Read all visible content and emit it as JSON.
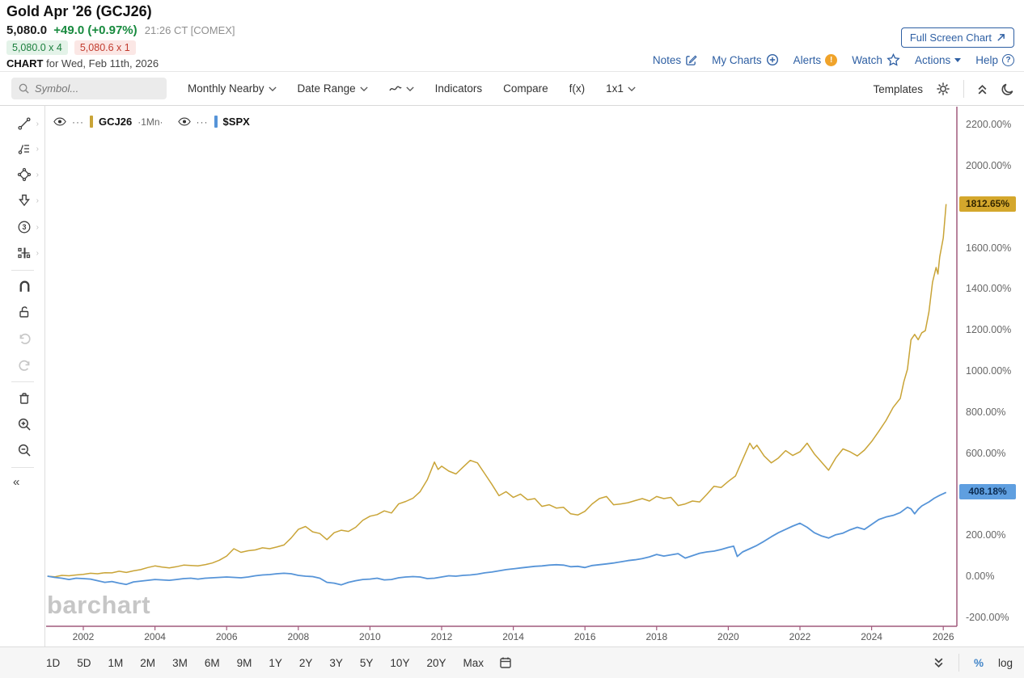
{
  "header": {
    "title": "Gold Apr '26 (GCJ26)",
    "last": "5,080.0",
    "change": "+49.0 (+0.97%)",
    "time": "21:26 CT [COMEX]",
    "bid": "5,080.0 x 4",
    "ask": "5,080.6 x 1",
    "chart_label": "CHART",
    "chart_for": "for Wed, Feb 11th, 2026",
    "fullscreen": "Full Screen Chart",
    "links": [
      {
        "label": "Notes",
        "icon": "notes-edit-icon"
      },
      {
        "label": "My Charts",
        "icon": "plus-circle-icon"
      },
      {
        "label": "Alerts",
        "icon": "alert-badge-icon",
        "badge": "!"
      },
      {
        "label": "Watch",
        "icon": "star-icon"
      },
      {
        "label": "Actions",
        "icon": "caret-down-icon"
      },
      {
        "label": "Help",
        "icon": "help-circle-icon",
        "badge": "?"
      }
    ]
  },
  "toolbar": {
    "search_placeholder": "Symbol...",
    "monthly": "Monthly Nearby",
    "date_range": "Date Range",
    "indicators": "Indicators",
    "compare": "Compare",
    "fx": "f(x)",
    "grid": "1x1",
    "templates": "Templates"
  },
  "legend": {
    "series": [
      {
        "symbol": "GCJ26",
        "period": "·1Mn·",
        "color": "#c9a437"
      },
      {
        "symbol": "$SPX",
        "period": "",
        "color": "#5694d8"
      }
    ],
    "dots": "···"
  },
  "watermark": "barchart",
  "chart_data": {
    "type": "line",
    "scale": "percent-change",
    "y_scale_mode": "linear",
    "axis_color": "#a05a7d",
    "x_axis": {
      "years": [
        2002,
        2004,
        2006,
        2008,
        2010,
        2012,
        2014,
        2016,
        2018,
        2020,
        2022,
        2024,
        2026
      ]
    },
    "y_axis": {
      "ticks": [
        2200,
        2000,
        1600,
        1400,
        1200,
        1000,
        800,
        600,
        200,
        0,
        -200
      ],
      "unit": "%"
    },
    "badges": [
      {
        "series": "GCJ26",
        "label": "1812.65%",
        "value": 1812.65,
        "bg": "#d4a72c",
        "fg": "#332600"
      },
      {
        "series": "$SPX",
        "label": "408.18%",
        "value": 408.18,
        "bg": "#5f9fe0",
        "fg": "#0b2b50"
      }
    ],
    "series": [
      {
        "name": "GCJ26",
        "color": "#c9a437",
        "width": 1.5,
        "points": [
          [
            2001.0,
            0
          ],
          [
            2001.2,
            -3
          ],
          [
            2001.4,
            4
          ],
          [
            2001.6,
            2
          ],
          [
            2001.8,
            6
          ],
          [
            2002.0,
            9
          ],
          [
            2002.2,
            14
          ],
          [
            2002.4,
            12
          ],
          [
            2002.6,
            17
          ],
          [
            2002.8,
            16
          ],
          [
            2003.0,
            24
          ],
          [
            2003.2,
            18
          ],
          [
            2003.4,
            26
          ],
          [
            2003.6,
            32
          ],
          [
            2003.8,
            42
          ],
          [
            2004.0,
            50
          ],
          [
            2004.2,
            44
          ],
          [
            2004.4,
            40
          ],
          [
            2004.6,
            46
          ],
          [
            2004.8,
            54
          ],
          [
            2005.0,
            52
          ],
          [
            2005.2,
            50
          ],
          [
            2005.4,
            56
          ],
          [
            2005.6,
            64
          ],
          [
            2005.8,
            78
          ],
          [
            2006.0,
            98
          ],
          [
            2006.2,
            134
          ],
          [
            2006.4,
            116
          ],
          [
            2006.6,
            124
          ],
          [
            2006.8,
            128
          ],
          [
            2007.0,
            138
          ],
          [
            2007.2,
            134
          ],
          [
            2007.4,
            142
          ],
          [
            2007.6,
            152
          ],
          [
            2007.8,
            186
          ],
          [
            2008.0,
            228
          ],
          [
            2008.2,
            242
          ],
          [
            2008.4,
            216
          ],
          [
            2008.6,
            208
          ],
          [
            2008.8,
            178
          ],
          [
            2009.0,
            212
          ],
          [
            2009.2,
            224
          ],
          [
            2009.4,
            218
          ],
          [
            2009.6,
            238
          ],
          [
            2009.8,
            272
          ],
          [
            2010.0,
            292
          ],
          [
            2010.2,
            300
          ],
          [
            2010.4,
            318
          ],
          [
            2010.6,
            308
          ],
          [
            2010.8,
            352
          ],
          [
            2011.0,
            364
          ],
          [
            2011.2,
            380
          ],
          [
            2011.4,
            412
          ],
          [
            2011.6,
            470
          ],
          [
            2011.8,
            556
          ],
          [
            2011.9,
            520
          ],
          [
            2012.0,
            536
          ],
          [
            2012.2,
            512
          ],
          [
            2012.4,
            498
          ],
          [
            2012.6,
            532
          ],
          [
            2012.8,
            564
          ],
          [
            2013.0,
            552
          ],
          [
            2013.2,
            500
          ],
          [
            2013.4,
            448
          ],
          [
            2013.6,
            392
          ],
          [
            2013.8,
            412
          ],
          [
            2014.0,
            384
          ],
          [
            2014.2,
            400
          ],
          [
            2014.4,
            372
          ],
          [
            2014.6,
            378
          ],
          [
            2014.8,
            340
          ],
          [
            2015.0,
            348
          ],
          [
            2015.2,
            332
          ],
          [
            2015.4,
            336
          ],
          [
            2015.6,
            304
          ],
          [
            2015.8,
            298
          ],
          [
            2016.0,
            316
          ],
          [
            2016.2,
            352
          ],
          [
            2016.4,
            378
          ],
          [
            2016.6,
            388
          ],
          [
            2016.8,
            348
          ],
          [
            2017.0,
            352
          ],
          [
            2017.2,
            358
          ],
          [
            2017.4,
            368
          ],
          [
            2017.6,
            378
          ],
          [
            2017.8,
            366
          ],
          [
            2018.0,
            388
          ],
          [
            2018.2,
            378
          ],
          [
            2018.4,
            384
          ],
          [
            2018.6,
            344
          ],
          [
            2018.8,
            352
          ],
          [
            2019.0,
            366
          ],
          [
            2019.2,
            362
          ],
          [
            2019.4,
            398
          ],
          [
            2019.6,
            438
          ],
          [
            2019.8,
            432
          ],
          [
            2020.0,
            462
          ],
          [
            2020.2,
            488
          ],
          [
            2020.4,
            568
          ],
          [
            2020.6,
            648
          ],
          [
            2020.7,
            620
          ],
          [
            2020.8,
            638
          ],
          [
            2021.0,
            586
          ],
          [
            2021.2,
            552
          ],
          [
            2021.4,
            576
          ],
          [
            2021.6,
            612
          ],
          [
            2021.8,
            588
          ],
          [
            2022.0,
            606
          ],
          [
            2022.2,
            648
          ],
          [
            2022.4,
            596
          ],
          [
            2022.6,
            556
          ],
          [
            2022.8,
            516
          ],
          [
            2023.0,
            576
          ],
          [
            2023.2,
            620
          ],
          [
            2023.4,
            606
          ],
          [
            2023.6,
            586
          ],
          [
            2023.8,
            614
          ],
          [
            2024.0,
            656
          ],
          [
            2024.2,
            706
          ],
          [
            2024.4,
            758
          ],
          [
            2024.6,
            822
          ],
          [
            2024.8,
            866
          ],
          [
            2024.9,
            948
          ],
          [
            2025.0,
            1008
          ],
          [
            2025.1,
            1152
          ],
          [
            2025.2,
            1178
          ],
          [
            2025.3,
            1152
          ],
          [
            2025.4,
            1186
          ],
          [
            2025.5,
            1196
          ],
          [
            2025.6,
            1288
          ],
          [
            2025.7,
            1432
          ],
          [
            2025.8,
            1504
          ],
          [
            2025.85,
            1472
          ],
          [
            2025.9,
            1556
          ],
          [
            2026.0,
            1648
          ],
          [
            2026.08,
            1812.65
          ]
        ]
      },
      {
        "name": "$SPX",
        "color": "#5694d8",
        "width": 1.8,
        "points": [
          [
            2001.0,
            0
          ],
          [
            2001.2,
            -6
          ],
          [
            2001.4,
            -10
          ],
          [
            2001.6,
            -16
          ],
          [
            2001.8,
            -10
          ],
          [
            2002.0,
            -12
          ],
          [
            2002.2,
            -14
          ],
          [
            2002.4,
            -22
          ],
          [
            2002.6,
            -30
          ],
          [
            2002.8,
            -26
          ],
          [
            2003.0,
            -34
          ],
          [
            2003.2,
            -40
          ],
          [
            2003.4,
            -28
          ],
          [
            2003.6,
            -24
          ],
          [
            2003.8,
            -20
          ],
          [
            2004.0,
            -16
          ],
          [
            2004.2,
            -18
          ],
          [
            2004.4,
            -20
          ],
          [
            2004.6,
            -16
          ],
          [
            2004.8,
            -12
          ],
          [
            2005.0,
            -10
          ],
          [
            2005.2,
            -14
          ],
          [
            2005.4,
            -10
          ],
          [
            2005.6,
            -8
          ],
          [
            2005.8,
            -6
          ],
          [
            2006.0,
            -4
          ],
          [
            2006.2,
            -6
          ],
          [
            2006.4,
            -8
          ],
          [
            2006.6,
            -4
          ],
          [
            2006.8,
            2
          ],
          [
            2007.0,
            6
          ],
          [
            2007.2,
            8
          ],
          [
            2007.4,
            12
          ],
          [
            2007.6,
            14
          ],
          [
            2007.8,
            12
          ],
          [
            2008.0,
            4
          ],
          [
            2008.2,
            0
          ],
          [
            2008.4,
            -2
          ],
          [
            2008.6,
            -10
          ],
          [
            2008.8,
            -30
          ],
          [
            2009.0,
            -34
          ],
          [
            2009.2,
            -42
          ],
          [
            2009.4,
            -30
          ],
          [
            2009.6,
            -22
          ],
          [
            2009.8,
            -16
          ],
          [
            2010.0,
            -14
          ],
          [
            2010.2,
            -10
          ],
          [
            2010.4,
            -18
          ],
          [
            2010.6,
            -16
          ],
          [
            2010.8,
            -8
          ],
          [
            2011.0,
            -4
          ],
          [
            2011.2,
            -2
          ],
          [
            2011.4,
            -4
          ],
          [
            2011.6,
            -12
          ],
          [
            2011.8,
            -10
          ],
          [
            2012.0,
            -4
          ],
          [
            2012.2,
            2
          ],
          [
            2012.4,
            0
          ],
          [
            2012.6,
            4
          ],
          [
            2012.8,
            6
          ],
          [
            2013.0,
            10
          ],
          [
            2013.2,
            16
          ],
          [
            2013.4,
            20
          ],
          [
            2013.6,
            26
          ],
          [
            2013.8,
            32
          ],
          [
            2014.0,
            36
          ],
          [
            2014.2,
            40
          ],
          [
            2014.4,
            44
          ],
          [
            2014.6,
            48
          ],
          [
            2014.8,
            50
          ],
          [
            2015.0,
            54
          ],
          [
            2015.2,
            56
          ],
          [
            2015.4,
            54
          ],
          [
            2015.6,
            46
          ],
          [
            2015.8,
            48
          ],
          [
            2016.0,
            42
          ],
          [
            2016.2,
            52
          ],
          [
            2016.4,
            56
          ],
          [
            2016.6,
            60
          ],
          [
            2016.8,
            64
          ],
          [
            2017.0,
            70
          ],
          [
            2017.2,
            76
          ],
          [
            2017.4,
            80
          ],
          [
            2017.6,
            86
          ],
          [
            2017.8,
            94
          ],
          [
            2018.0,
            106
          ],
          [
            2018.2,
            98
          ],
          [
            2018.4,
            104
          ],
          [
            2018.6,
            110
          ],
          [
            2018.8,
            88
          ],
          [
            2019.0,
            100
          ],
          [
            2019.2,
            112
          ],
          [
            2019.4,
            118
          ],
          [
            2019.6,
            122
          ],
          [
            2019.8,
            130
          ],
          [
            2020.0,
            140
          ],
          [
            2020.15,
            146
          ],
          [
            2020.25,
            96
          ],
          [
            2020.4,
            118
          ],
          [
            2020.6,
            134
          ],
          [
            2020.8,
            150
          ],
          [
            2021.0,
            170
          ],
          [
            2021.2,
            192
          ],
          [
            2021.4,
            212
          ],
          [
            2021.6,
            228
          ],
          [
            2021.8,
            244
          ],
          [
            2022.0,
            258
          ],
          [
            2022.2,
            238
          ],
          [
            2022.4,
            212
          ],
          [
            2022.6,
            196
          ],
          [
            2022.8,
            186
          ],
          [
            2023.0,
            202
          ],
          [
            2023.2,
            210
          ],
          [
            2023.4,
            226
          ],
          [
            2023.6,
            238
          ],
          [
            2023.8,
            228
          ],
          [
            2024.0,
            252
          ],
          [
            2024.2,
            276
          ],
          [
            2024.4,
            288
          ],
          [
            2024.6,
            296
          ],
          [
            2024.8,
            310
          ],
          [
            2025.0,
            336
          ],
          [
            2025.1,
            328
          ],
          [
            2025.2,
            304
          ],
          [
            2025.3,
            326
          ],
          [
            2025.4,
            342
          ],
          [
            2025.5,
            352
          ],
          [
            2025.6,
            362
          ],
          [
            2025.75,
            380
          ],
          [
            2025.9,
            394
          ],
          [
            2026.0,
            402
          ],
          [
            2026.08,
            408.18
          ]
        ]
      }
    ]
  },
  "bottom": {
    "ranges": [
      "1D",
      "5D",
      "1M",
      "2M",
      "3M",
      "6M",
      "9M",
      "1Y",
      "2Y",
      "3Y",
      "5Y",
      "10Y",
      "20Y",
      "Max"
    ],
    "percent": "%",
    "log": "log"
  }
}
